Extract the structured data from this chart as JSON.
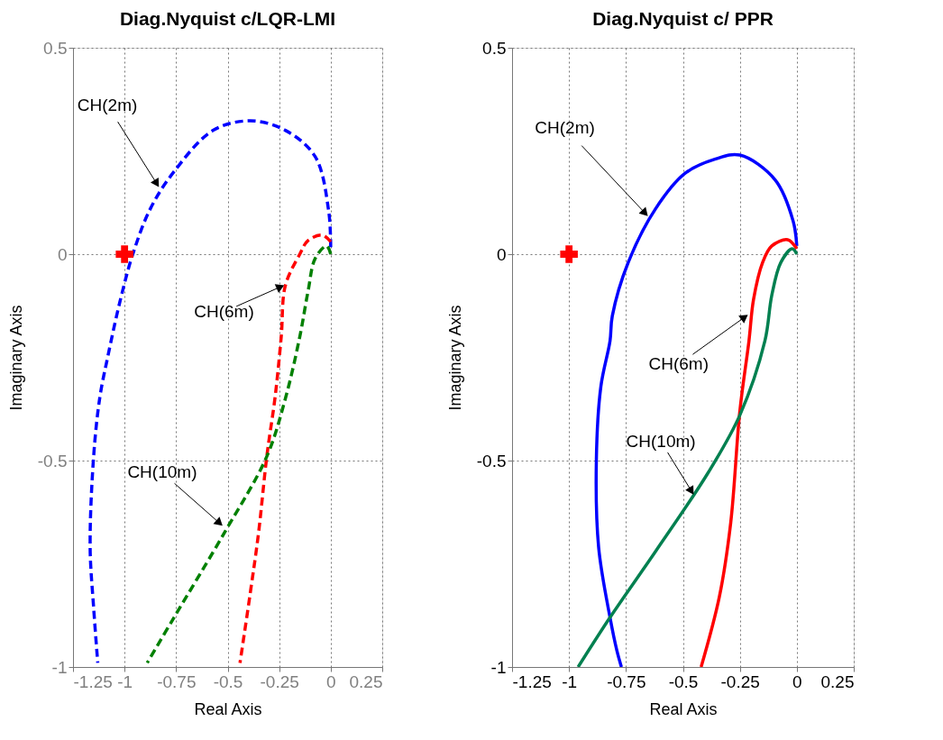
{
  "chart_data": [
    {
      "type": "line",
      "title": "Diag.Nyquist c/LQR-LMI",
      "xlabel": "Real Axis",
      "ylabel": "Imaginary Axis",
      "xlim": [
        -1.25,
        0.25
      ],
      "ylim": [
        -1,
        0.5
      ],
      "xticks": [
        -1.25,
        -1,
        -0.75,
        -0.5,
        -0.25,
        0,
        0.25
      ],
      "yticks": [
        -1,
        -0.5,
        0,
        0.5
      ],
      "grid": true,
      "line_style": "dashed",
      "series": [
        {
          "color": "#0000ff",
          "x": [
            0.0,
            -0.01,
            -0.075,
            -0.22,
            -0.39,
            -0.57,
            -0.76,
            -0.875,
            -0.96,
            -1.02,
            -1.08,
            -1.12,
            -1.15,
            -1.167,
            -1.15,
            -1.13
          ],
          "values": [
            0.017,
            0.105,
            0.236,
            0.3,
            0.323,
            0.3,
            0.2,
            0.11,
            0.0,
            -0.11,
            -0.245,
            -0.347,
            -0.49,
            -0.71,
            -0.856,
            -0.99
          ]
        },
        {
          "color": "#ff0000",
          "x": [
            0.0,
            -0.04,
            -0.11,
            -0.15,
            -0.22,
            -0.24,
            -0.27,
            -0.31,
            -0.35,
            -0.39,
            -0.44
          ],
          "values": [
            0.03,
            0.046,
            0.033,
            0.0,
            -0.076,
            -0.2,
            -0.347,
            -0.49,
            -0.675,
            -0.82,
            -0.99
          ]
        },
        {
          "color": "#008000",
          "x": [
            0.0,
            -0.02,
            -0.075,
            -0.11,
            -0.15,
            -0.22,
            -0.31,
            -0.51,
            -0.76,
            -0.89
          ],
          "values": [
            0.0,
            0.02,
            -0.01,
            -0.09,
            -0.2,
            -0.35,
            -0.49,
            -0.67,
            -0.88,
            -0.99
          ]
        },
        {
          "type": "scatter",
          "marker": "cross",
          "color": "#ff0000",
          "x": [
            -1
          ],
          "values": [
            0
          ]
        }
      ],
      "annotations": [
        {
          "text": "CH(2m)",
          "x": -0.83,
          "y": 0.16
        },
        {
          "text": "CH(6m)",
          "x": -0.22,
          "y": -0.074
        },
        {
          "text": "CH(10m)",
          "x": -0.52,
          "y": -0.66
        }
      ]
    },
    {
      "type": "line",
      "title": "Diag.Nyquist c/ PPR",
      "xlabel": "Real Axis",
      "ylabel": "Imaginary Axis",
      "xlim": [
        -1.25,
        0.25
      ],
      "ylim": [
        -1,
        0.5
      ],
      "xticks": [
        -1.25,
        -1,
        -0.75,
        -0.5,
        -0.25,
        0,
        0.25
      ],
      "yticks": [
        -1,
        -0.5,
        0,
        0.5
      ],
      "grid": true,
      "line_style": "solid",
      "series": [
        {
          "color": "#0000ff",
          "x": [
            0.0,
            -0.016,
            -0.095,
            -0.25,
            -0.36,
            -0.49,
            -0.62,
            -0.74,
            -0.81,
            -0.82,
            -0.86,
            -0.88,
            -0.87,
            -0.82,
            -0.79,
            -0.77
          ],
          "values": [
            0.02,
            0.08,
            0.18,
            0.24,
            0.23,
            0.196,
            0.11,
            -0.02,
            -0.15,
            -0.21,
            -0.32,
            -0.5,
            -0.71,
            -0.88,
            -0.96,
            -1.0
          ]
        },
        {
          "color": "#ff0000",
          "x": [
            0.0,
            -0.04,
            -0.11,
            -0.15,
            -0.19,
            -0.21,
            -0.25,
            -0.29,
            -0.34,
            -0.42
          ],
          "values": [
            0.013,
            0.035,
            0.02,
            -0.02,
            -0.11,
            -0.21,
            -0.38,
            -0.65,
            -0.83,
            -1.0
          ]
        },
        {
          "color": "#008050",
          "x": [
            0.0,
            -0.02,
            -0.07,
            -0.11,
            -0.14,
            -0.25,
            -0.39,
            -0.62,
            -0.82,
            -0.96
          ],
          "values": [
            0.0,
            0.013,
            -0.02,
            -0.1,
            -0.21,
            -0.39,
            -0.53,
            -0.72,
            -0.88,
            -1.0
          ]
        },
        {
          "type": "scatter",
          "marker": "cross",
          "color": "#ff0000",
          "x": [
            -1
          ],
          "values": [
            0
          ]
        }
      ],
      "annotations": [
        {
          "text": "CH(2m)",
          "x": -0.65,
          "y": 0.09
        },
        {
          "text": "CH(6m)",
          "x": -0.21,
          "y": -0.145
        },
        {
          "text": "CH(10m)",
          "x": -0.45,
          "y": -0.585
        }
      ]
    }
  ]
}
